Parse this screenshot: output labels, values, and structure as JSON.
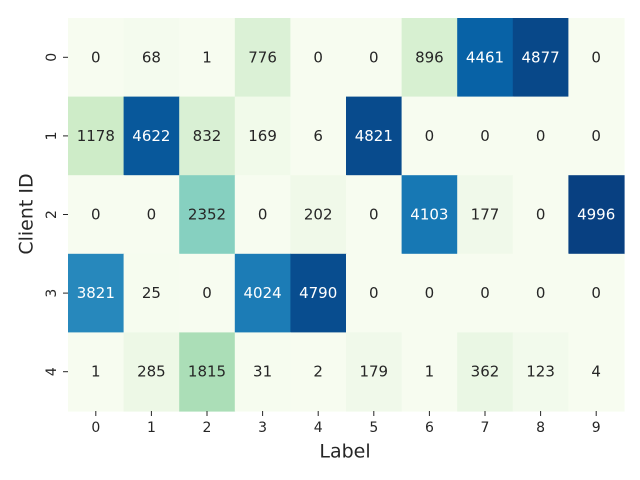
{
  "chart_data": {
    "type": "heatmap",
    "xlabel": "Label",
    "ylabel": "Client ID",
    "x_ticks": [
      "0",
      "1",
      "2",
      "3",
      "4",
      "5",
      "6",
      "7",
      "8",
      "9"
    ],
    "y_ticks": [
      "0",
      "1",
      "2",
      "3",
      "4"
    ],
    "values": [
      [
        0,
        68,
        1,
        776,
        0,
        0,
        896,
        4461,
        4877,
        0
      ],
      [
        1178,
        4622,
        832,
        169,
        6,
        4821,
        0,
        0,
        0,
        0
      ],
      [
        0,
        0,
        2352,
        0,
        202,
        0,
        4103,
        177,
        0,
        4996
      ],
      [
        3821,
        25,
        0,
        4024,
        4790,
        0,
        0,
        0,
        0,
        0
      ],
      [
        1,
        285,
        1815,
        31,
        2,
        179,
        1,
        362,
        123,
        4
      ]
    ],
    "vmin": 0,
    "vmax": 5000,
    "colormap": "GnBu",
    "annotated": true,
    "colorbar": false
  }
}
